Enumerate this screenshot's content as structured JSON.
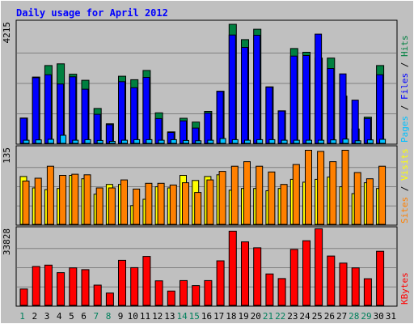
{
  "chart_data": {
    "type": "bar",
    "title": "Daily usage for April 2012",
    "categories": [
      "1",
      "2",
      "3",
      "4",
      "5",
      "6",
      "7",
      "8",
      "9",
      "10",
      "11",
      "12",
      "13",
      "14",
      "15",
      "16",
      "17",
      "18",
      "19",
      "20",
      "21",
      "22",
      "23",
      "24",
      "25",
      "26",
      "27",
      "28",
      "29",
      "30",
      "31"
    ],
    "weekend_days": [
      "1",
      "7",
      "8",
      "14",
      "15",
      "21",
      "22",
      "28",
      "29"
    ],
    "panels": [
      {
        "max_label": "4215",
        "ymax": 4215,
        "legend": [
          {
            "text": "Pages",
            "color": "#00c0ff"
          },
          {
            "text": " / ",
            "color": "#000000"
          },
          {
            "text": "Files",
            "color": "#0000ff"
          },
          {
            "text": " / ",
            "color": "#000000"
          },
          {
            "text": "Hits",
            "color": "#008040"
          }
        ],
        "series": [
          {
            "name": "Hits",
            "color": "#008040",
            "values": [
              880,
              2300,
              2700,
              2760,
              2400,
              2190,
              1210,
              680,
              2330,
              2210,
              2530,
              1060,
              400,
              870,
              740,
              1110,
              1810,
              4130,
              3600,
              3960,
              1960,
              1130,
              3290,
              3160,
              2960,
              2960,
              1640,
              500,
              910,
              2700,
              null
            ]
          },
          {
            "name": "Files",
            "color": "#0000ff",
            "values": [
              870,
              2280,
              2380,
              2060,
              2310,
              1880,
              1010,
              650,
              2140,
              1930,
              2290,
              860,
              380,
              780,
              530,
              1050,
              1800,
              3760,
              3330,
              3750,
              1950,
              1120,
              3030,
              3050,
              3790,
              2600,
              2410,
              1500,
              860,
              2380,
              null
            ]
          },
          {
            "name": "Pages",
            "color": "#00c0ff",
            "values": [
              110,
              120,
              140,
              280,
              110,
              130,
              100,
              70,
              110,
              130,
              130,
              110,
              130,
              100,
              90,
              110,
              170,
              130,
              110,
              130,
              130,
              110,
              110,
              110,
              110,
              120,
              150,
              90,
              120,
              140,
              null
            ]
          }
        ]
      },
      {
        "max_label": "135",
        "ymax": 135,
        "legend": [
          {
            "text": "Sites",
            "color": "#ff8000"
          },
          {
            "text": " / ",
            "color": "#000000"
          },
          {
            "text": "Visits",
            "color": "#ffff00"
          }
        ],
        "series": [
          {
            "name": "Visits",
            "color": "#ffff00",
            "values": [
              84,
              64,
              61,
              63,
              86,
              80,
              53,
              70,
              70,
              33,
              44,
              66,
              64,
              86,
              77,
              84,
              87,
              60,
              63,
              63,
              59,
              63,
              79,
              74,
              79,
              83,
              66,
              54,
              73,
              63,
              null
            ]
          },
          {
            "name": "Sites",
            "color": "#ff8000",
            "values": [
              76,
              81,
              102,
              86,
              88,
              87,
              64,
              64,
              78,
              62,
              72,
              72,
              69,
              73,
              56,
              78,
              93,
              102,
              110,
              102,
              92,
              70,
              105,
              130,
              128,
              110,
              130,
              91,
              80,
              102,
              null
            ]
          }
        ]
      },
      {
        "max_label": "33828",
        "ymax": 33828,
        "legend": [
          {
            "text": "KBytes",
            "color": "#ff0000"
          }
        ],
        "series": [
          {
            "name": "KBytes",
            "color": "#ff0000",
            "values": [
              7200,
              17100,
              17700,
              14400,
              16500,
              15700,
              8900,
              5400,
              19800,
              16600,
              21500,
              10800,
              6300,
              10900,
              8700,
              10900,
              19600,
              32600,
              27900,
              25300,
              13800,
              11800,
              24600,
              28400,
              33700,
              21700,
              18600,
              16500,
              11700,
              23800,
              null
            ]
          }
        ]
      }
    ]
  }
}
